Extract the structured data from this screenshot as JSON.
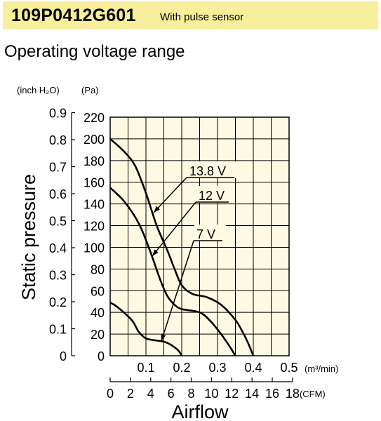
{
  "header": {
    "model": "109P0412G601",
    "subtitle": "With pulse sensor"
  },
  "section_title": "Operating voltage range",
  "colors": {
    "header_bg": "#f7ef9b",
    "plot_bg": "#fdf9e2",
    "curve": "#000000"
  },
  "chart_data": {
    "type": "line",
    "title": "Operating voltage range",
    "xlabel": "Airflow",
    "ylabel": "Static pressure",
    "x_unit": "(m³/min)",
    "x2_unit": "(CFM)",
    "y_unit_pa": "(Pa)",
    "y_unit_inch": "(inch H₂O)",
    "xlim": [
      0,
      0.5
    ],
    "ylim": [
      0,
      220
    ],
    "grid": true,
    "x_ticks": [
      "0.1",
      "0.2",
      "0.3",
      "0.4",
      "0.5"
    ],
    "y_ticks_pa": [
      "0",
      "20",
      "40",
      "60",
      "80",
      "100",
      "120",
      "140",
      "160",
      "180",
      "200",
      "220"
    ],
    "y_ticks_inch": [
      "0",
      "0.1",
      "0.2",
      "0.3",
      "0.4",
      "0.5",
      "0.6",
      "0.7",
      "0.8",
      "0.9"
    ],
    "x2_ticks": [
      "0",
      "2",
      "4",
      "6",
      "8",
      "10",
      "12",
      "14",
      "16",
      "18"
    ],
    "series": [
      {
        "name": "13.8 V",
        "x": [
          0,
          0.04,
          0.07,
          0.1,
          0.13,
          0.16,
          0.18,
          0.2,
          0.23,
          0.27,
          0.31,
          0.35,
          0.37,
          0.385,
          0.4
        ],
        "y": [
          200,
          188,
          175,
          150,
          120,
          97,
          80,
          65,
          57,
          54,
          47,
          33,
          22,
          12,
          0
        ]
      },
      {
        "name": "12 V",
        "x": [
          0,
          0.04,
          0.08,
          0.11,
          0.14,
          0.16,
          0.18,
          0.2,
          0.25,
          0.28,
          0.31,
          0.335,
          0.35
        ],
        "y": [
          155,
          142,
          122,
          98,
          70,
          55,
          47,
          43,
          40,
          32,
          20,
          8,
          0
        ]
      },
      {
        "name": "7 V",
        "x": [
          0,
          0.02,
          0.06,
          0.08,
          0.1,
          0.13,
          0.15,
          0.17,
          0.19,
          0.2
        ],
        "y": [
          49,
          45,
          33,
          22,
          16,
          14,
          13,
          10,
          5,
          0
        ]
      }
    ]
  }
}
